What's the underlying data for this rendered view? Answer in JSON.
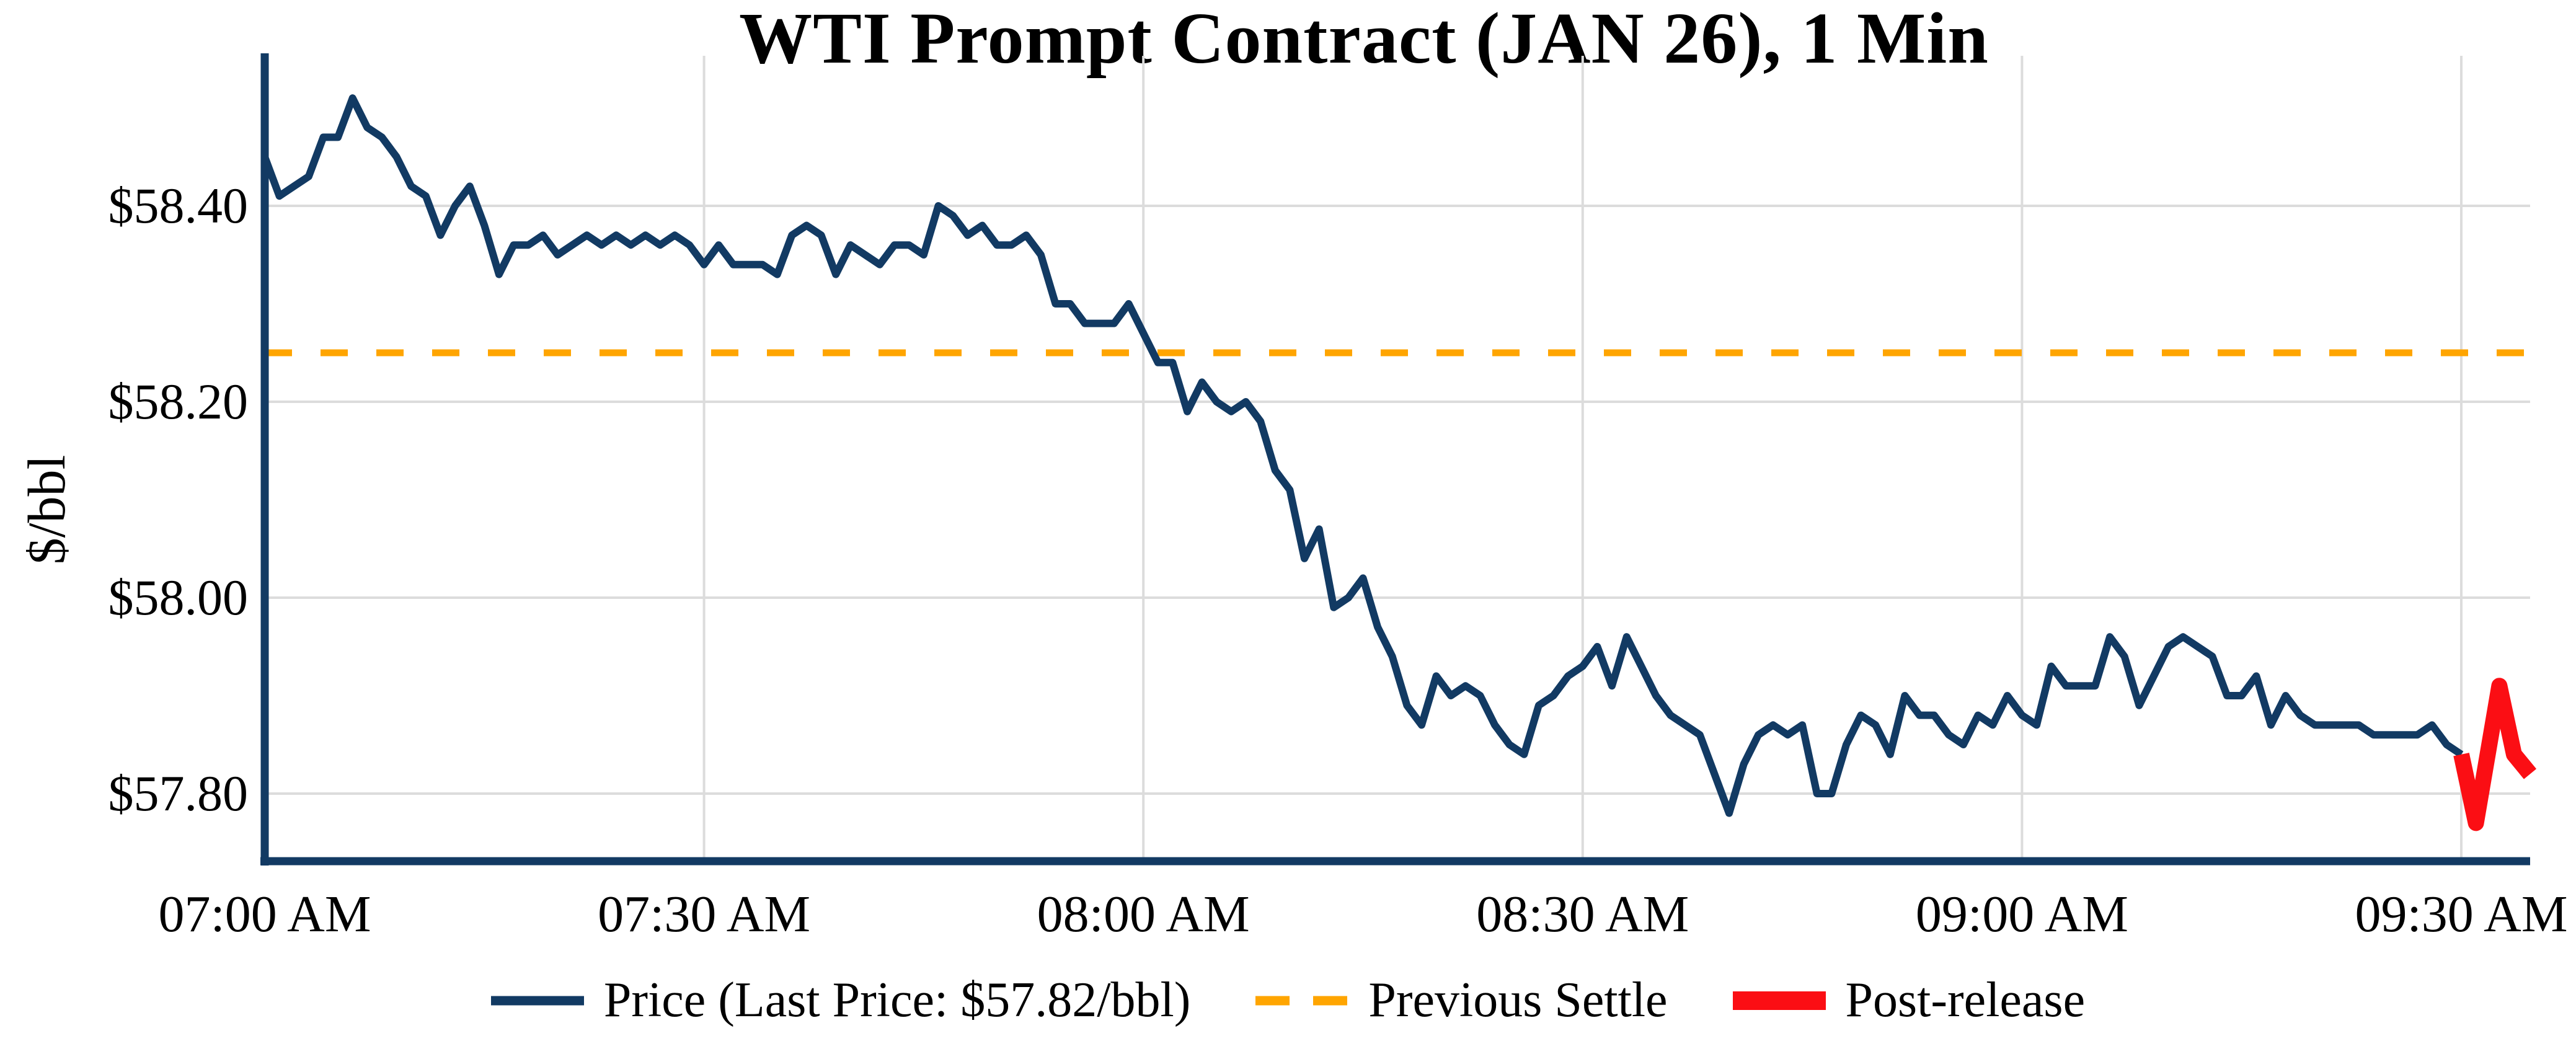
{
  "title": "WTI Prompt Contract (JAN 26), 1 Min",
  "legend": {
    "price_label": "Price (Last Price: $57.82/bbl)",
    "settle_label": "Previous Settle",
    "post_label": "Post-release"
  },
  "colors": {
    "price": "#123a63",
    "settle": "#ffa500",
    "post": "#fb0e14",
    "grid": "#dcdcdc",
    "axis": "#123a63"
  },
  "chart_data": {
    "type": "line",
    "title": "WTI Prompt Contract (JAN 26), 1 Min",
    "xlabel": "",
    "ylabel": "$/bbl",
    "x_unit": "minutes after 07:00 AM",
    "xtick_labels": [
      "07:00 AM",
      "07:30 AM",
      "08:00 AM",
      "08:30 AM",
      "09:00 AM",
      "09:30 AM"
    ],
    "xtick_minutes": [
      0,
      30,
      60,
      90,
      120,
      150
    ],
    "ytick_labels": [
      "$58.40",
      "$58.20",
      "$58.00",
      "$57.80"
    ],
    "ytick_values": [
      58.4,
      58.2,
      58.0,
      57.8
    ],
    "ylim": [
      57.728,
      58.553
    ],
    "xlim_minutes": [
      0,
      154.7
    ],
    "grid": true,
    "legend_position": "bottom-center",
    "previous_settle": 58.25,
    "last_price": 57.82,
    "reference_lines": [
      {
        "name": "Previous Settle",
        "value": 58.25,
        "style": "dashed",
        "color_key": "settle"
      }
    ],
    "series": [
      {
        "name": "Price",
        "color_key": "price",
        "width": 12,
        "points": [
          [
            0,
            58.45
          ],
          [
            1,
            58.41
          ],
          [
            2,
            58.42
          ],
          [
            3,
            58.43
          ],
          [
            4,
            58.47
          ],
          [
            5,
            58.47
          ],
          [
            6,
            58.51
          ],
          [
            7,
            58.48
          ],
          [
            8,
            58.47
          ],
          [
            9,
            58.45
          ],
          [
            10,
            58.42
          ],
          [
            11,
            58.41
          ],
          [
            12,
            58.37
          ],
          [
            13,
            58.4
          ],
          [
            14,
            58.42
          ],
          [
            15,
            58.38
          ],
          [
            16,
            58.33
          ],
          [
            17,
            58.36
          ],
          [
            18,
            58.36
          ],
          [
            19,
            58.37
          ],
          [
            20,
            58.35
          ],
          [
            21,
            58.36
          ],
          [
            22,
            58.37
          ],
          [
            23,
            58.36
          ],
          [
            24,
            58.37
          ],
          [
            25,
            58.36
          ],
          [
            26,
            58.37
          ],
          [
            27,
            58.36
          ],
          [
            28,
            58.37
          ],
          [
            29,
            58.36
          ],
          [
            30,
            58.34
          ],
          [
            31,
            58.36
          ],
          [
            32,
            58.34
          ],
          [
            33,
            58.34
          ],
          [
            34,
            58.34
          ],
          [
            35,
            58.33
          ],
          [
            36,
            58.37
          ],
          [
            37,
            58.38
          ],
          [
            38,
            58.37
          ],
          [
            39,
            58.33
          ],
          [
            40,
            58.36
          ],
          [
            41,
            58.35
          ],
          [
            42,
            58.34
          ],
          [
            43,
            58.36
          ],
          [
            44,
            58.36
          ],
          [
            45,
            58.35
          ],
          [
            46,
            58.4
          ],
          [
            47,
            58.39
          ],
          [
            48,
            58.37
          ],
          [
            49,
            58.38
          ],
          [
            50,
            58.36
          ],
          [
            51,
            58.36
          ],
          [
            52,
            58.37
          ],
          [
            53,
            58.35
          ],
          [
            54,
            58.3
          ],
          [
            55,
            58.3
          ],
          [
            56,
            58.28
          ],
          [
            57,
            58.28
          ],
          [
            58,
            58.28
          ],
          [
            59,
            58.3
          ],
          [
            60,
            58.27
          ],
          [
            61,
            58.24
          ],
          [
            62,
            58.24
          ],
          [
            63,
            58.19
          ],
          [
            64,
            58.22
          ],
          [
            65,
            58.2
          ],
          [
            66,
            58.19
          ],
          [
            67,
            58.2
          ],
          [
            68,
            58.18
          ],
          [
            69,
            58.13
          ],
          [
            70,
            58.11
          ],
          [
            71,
            58.04
          ],
          [
            72,
            58.07
          ],
          [
            73,
            57.99
          ],
          [
            74,
            58.0
          ],
          [
            75,
            58.02
          ],
          [
            76,
            57.97
          ],
          [
            77,
            57.94
          ],
          [
            78,
            57.89
          ],
          [
            79,
            57.87
          ],
          [
            80,
            57.92
          ],
          [
            81,
            57.9
          ],
          [
            82,
            57.91
          ],
          [
            83,
            57.9
          ],
          [
            84,
            57.87
          ],
          [
            85,
            57.85
          ],
          [
            86,
            57.84
          ],
          [
            87,
            57.89
          ],
          [
            88,
            57.9
          ],
          [
            89,
            57.92
          ],
          [
            90,
            57.93
          ],
          [
            91,
            57.95
          ],
          [
            92,
            57.91
          ],
          [
            93,
            57.96
          ],
          [
            94,
            57.93
          ],
          [
            95,
            57.9
          ],
          [
            96,
            57.88
          ],
          [
            97,
            57.87
          ],
          [
            98,
            57.86
          ],
          [
            99,
            57.82
          ],
          [
            100,
            57.78
          ],
          [
            101,
            57.83
          ],
          [
            102,
            57.86
          ],
          [
            103,
            57.87
          ],
          [
            104,
            57.86
          ],
          [
            105,
            57.87
          ],
          [
            106,
            57.8
          ],
          [
            107,
            57.8
          ],
          [
            108,
            57.85
          ],
          [
            109,
            57.88
          ],
          [
            110,
            57.87
          ],
          [
            111,
            57.84
          ],
          [
            112,
            57.9
          ],
          [
            113,
            57.88
          ],
          [
            114,
            57.88
          ],
          [
            115,
            57.86
          ],
          [
            116,
            57.85
          ],
          [
            117,
            57.88
          ],
          [
            118,
            57.87
          ],
          [
            119,
            57.9
          ],
          [
            120,
            57.88
          ],
          [
            121,
            57.87
          ],
          [
            122,
            57.93
          ],
          [
            123,
            57.91
          ],
          [
            124,
            57.91
          ],
          [
            125,
            57.91
          ],
          [
            126,
            57.96
          ],
          [
            127,
            57.94
          ],
          [
            128,
            57.89
          ],
          [
            129,
            57.92
          ],
          [
            130,
            57.95
          ],
          [
            131,
            57.96
          ],
          [
            132,
            57.95
          ],
          [
            133,
            57.94
          ],
          [
            134,
            57.9
          ],
          [
            135,
            57.9
          ],
          [
            136,
            57.92
          ],
          [
            137,
            57.87
          ],
          [
            138,
            57.9
          ],
          [
            139,
            57.88
          ],
          [
            140,
            57.87
          ],
          [
            141,
            57.87
          ],
          [
            142,
            57.87
          ],
          [
            143,
            57.87
          ],
          [
            144,
            57.86
          ],
          [
            145,
            57.86
          ],
          [
            146,
            57.86
          ],
          [
            147,
            57.86
          ],
          [
            148,
            57.87
          ],
          [
            149,
            57.85
          ],
          [
            150,
            57.84
          ]
        ]
      },
      {
        "name": "Post-release",
        "color_key": "post",
        "width": 26,
        "points": [
          [
            150,
            57.84
          ],
          [
            151,
            57.77
          ],
          [
            152.6,
            57.91
          ],
          [
            153.6,
            57.84
          ],
          [
            154.7,
            57.82
          ]
        ]
      }
    ]
  }
}
